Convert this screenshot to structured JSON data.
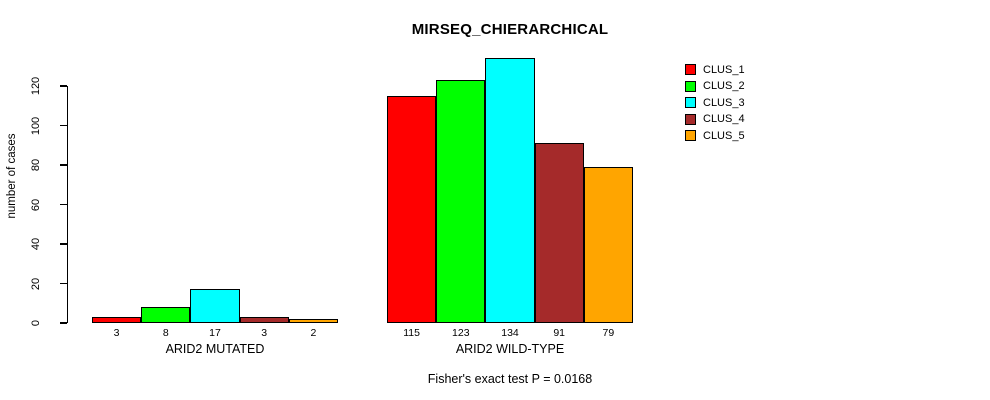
{
  "figure": {
    "title": "MIRSEQ_CHIERARCHICAL",
    "footnote": "Fisher's exact test P = 0.0168"
  },
  "chart_data": {
    "type": "bar",
    "title": "MIRSEQ_CHIERARCHICAL",
    "xlabel": "",
    "ylabel": "number of cases",
    "ylim": [
      0,
      140
    ],
    "yticks": [
      0,
      20,
      40,
      60,
      80,
      100,
      120
    ],
    "grid": false,
    "legend_position": "right-inside-top",
    "categories": [
      "ARID2 MUTATED",
      "ARID2 WILD-TYPE"
    ],
    "series": [
      {
        "name": "CLUS_1",
        "color": "#ff0000",
        "values": [
          3,
          115
        ]
      },
      {
        "name": "CLUS_2",
        "color": "#00ff00",
        "values": [
          8,
          123
        ]
      },
      {
        "name": "CLUS_3",
        "color": "#00ffff",
        "values": [
          17,
          134
        ]
      },
      {
        "name": "CLUS_4",
        "color": "#a52a2a",
        "values": [
          3,
          91
        ]
      },
      {
        "name": "CLUS_5",
        "color": "#ffa500",
        "values": [
          2,
          79
        ]
      }
    ],
    "bar_value_labels": [
      [
        3,
        8,
        17,
        3,
        2
      ],
      [
        115,
        123,
        134,
        91,
        79
      ]
    ],
    "footnote": "Fisher's exact test P = 0.0168"
  }
}
